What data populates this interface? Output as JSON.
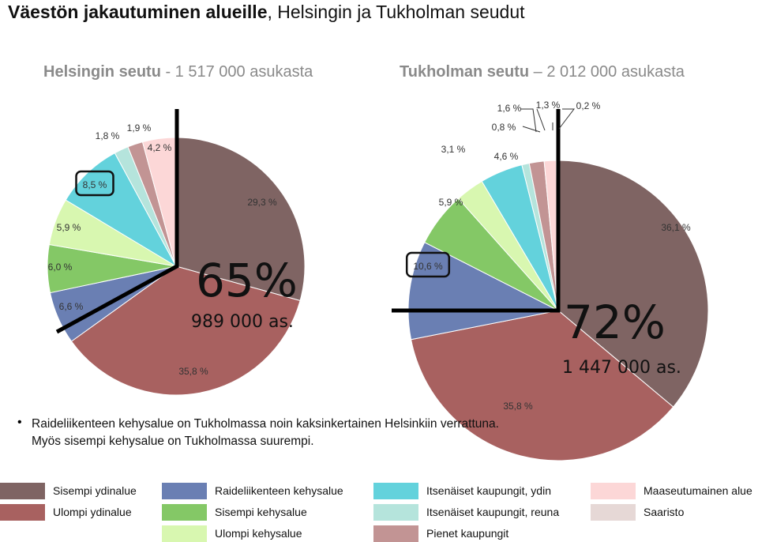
{
  "title": {
    "bold": "Väestön jakautuminen alueille",
    "rest": ", Helsingin ja Tukholman seudut"
  },
  "subtitles": {
    "left": {
      "bold": "Helsingin seutu",
      "rest": " - 1 517 000 asukasta"
    },
    "right": {
      "bold": "Tukholman seutu",
      "rest": " – 2 012 000 asukasta"
    }
  },
  "chart_data": [
    {
      "type": "pie",
      "categories": [
        "Sisempi ydinalue",
        "Ulompi ydinalue",
        "Raideliikenteen kehysalue",
        "Sisempi kehysalue",
        "Ulompi kehysalue",
        "Itsenäiset kaupungit, ydin",
        "Itsenäiset kaupungit, reuna",
        "Pienet kaupungit",
        "Maaseutumainen alue"
      ],
      "values": [
        29.3,
        35.8,
        6.6,
        6.0,
        5.9,
        8.5,
        1.8,
        1.9,
        4.2
      ],
      "labels": [
        "29,3 %",
        "35,8 %",
        "6,6 %",
        "6,0 %",
        "5,9 %",
        "8,5 %",
        "1,8 %",
        "1,9 %",
        "4,2 %"
      ],
      "core_share_label": "65%",
      "core_population_label": "989 000 as."
    },
    {
      "type": "pie",
      "categories": [
        "Sisempi ydinalue",
        "Ulompi ydinalue",
        "Raideliikenteen kehysalue",
        "Sisempi kehysalue",
        "Ulompi kehysalue",
        "Itsenäiset kaupungit, ydin",
        "Itsenäiset kaupungit, reuna",
        "Pienet kaupungit",
        "Maaseutumainen alue",
        "Saaristo"
      ],
      "values": [
        36.1,
        35.8,
        10.6,
        5.9,
        3.1,
        4.6,
        0.8,
        1.6,
        1.3,
        0.2
      ],
      "labels": [
        "36,1 %",
        "35,8 %",
        "10,6 %",
        "5,9 %",
        "3,1 %",
        "4,6 %",
        "0,8 %",
        "1,6 %",
        "1,3 %",
        "0,2 %"
      ],
      "core_share_label": "72%",
      "core_population_label": "1 447 000 as."
    }
  ],
  "notes": {
    "line1": "Raideliikenteen kehysalue on Tukholmassa noin kaksinkertainen Helsinkiin verrattuna.",
    "line2": "Myös sisempi kehysalue on Tukholmassa suurempi."
  },
  "legend": [
    {
      "label": "Sisempi ydinalue",
      "color": "#7f6463"
    },
    {
      "label": "Ulompi ydinalue",
      "color": "#a86160"
    },
    {
      "label": "Raideliikenteen kehysalue",
      "color": "#6a7fb3"
    },
    {
      "label": "Sisempi kehysalue",
      "color": "#84c866"
    },
    {
      "label": "Ulompi kehysalue",
      "color": "#d8f7b0"
    },
    {
      "label": "Itsenäiset kaupungit, ydin",
      "color": "#63d2dc"
    },
    {
      "label": "Itsenäiset kaupungit, reuna",
      "color": "#b5e4dc"
    },
    {
      "label": "Pienet kaupungit",
      "color": "#c29494"
    },
    {
      "label": "Maaseutumainen alue",
      "color": "#fcd7d7"
    },
    {
      "label": "Saaristo",
      "color": "#e6d8d6"
    }
  ]
}
